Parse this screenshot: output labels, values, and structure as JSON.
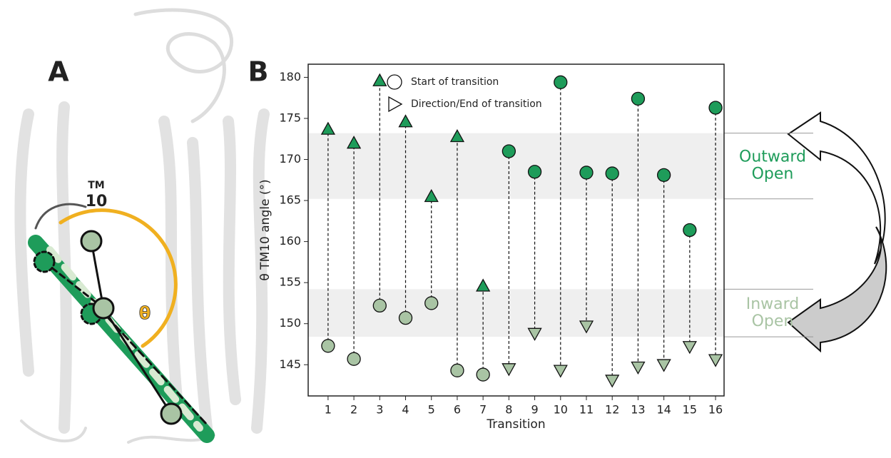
{
  "panel_a": {
    "label": "A",
    "helix_prefix": "TM",
    "helix_number": "10",
    "angle_symbol": "θ"
  },
  "chart_data": {
    "type": "transition",
    "panel_label": "B",
    "xlabel": "Transition",
    "ylabel": "θ TM10 angle (°)",
    "x": [
      1,
      2,
      3,
      4,
      5,
      6,
      7,
      8,
      9,
      10,
      11,
      12,
      13,
      14,
      15,
      16
    ],
    "xlim": [
      0.23,
      16.33
    ],
    "xticks": [
      1,
      2,
      3,
      4,
      5,
      6,
      7,
      8,
      9,
      10,
      11,
      12,
      13,
      14,
      15,
      16
    ],
    "ylim": [
      141.2,
      181.6
    ],
    "yticks": [
      145,
      150,
      155,
      160,
      165,
      170,
      175,
      180
    ],
    "series": [
      {
        "name": "Start of transition",
        "marker": "circle",
        "values": [
          147.3,
          145.7,
          152.2,
          150.7,
          152.5,
          144.3,
          143.8,
          171.0,
          168.5,
          179.4,
          168.4,
          168.3,
          177.4,
          168.1,
          161.4,
          176.3
        ],
        "colors": [
          "#a9c4a4",
          "#a9c4a4",
          "#a9c4a4",
          "#a9c4a4",
          "#a9c4a4",
          "#a9c4a4",
          "#a9c4a4",
          "#1e9c5a",
          "#1e9c5a",
          "#1e9c5a",
          "#1e9c5a",
          "#1e9c5a",
          "#1e9c5a",
          "#1e9c5a",
          "#1e9c5a",
          "#1e9c5a"
        ]
      },
      {
        "name": "Direction/End of transition",
        "marker": "triangle",
        "values": [
          173.7,
          172.0,
          179.6,
          174.6,
          165.5,
          172.8,
          154.6,
          144.5,
          148.8,
          144.3,
          149.7,
          143.1,
          144.7,
          145.0,
          147.2,
          145.6
        ],
        "colors": [
          "#1e9c5a",
          "#1e9c5a",
          "#1e9c5a",
          "#1e9c5a",
          "#1e9c5a",
          "#1e9c5a",
          "#1e9c5a",
          "#a9c4a4",
          "#a9c4a4",
          "#a9c4a4",
          "#a9c4a4",
          "#a9c4a4",
          "#a9c4a4",
          "#a9c4a4",
          "#a9c4a4",
          "#a9c4a4"
        ]
      }
    ],
    "bands": [
      {
        "label_lines": [
          "Outward",
          "Open"
        ],
        "range": [
          165.2,
          173.2
        ],
        "color": "#1e9c5a"
      },
      {
        "label_lines": [
          "Inward",
          "Open"
        ],
        "range": [
          148.4,
          154.2
        ],
        "color": "#a9c4a4"
      }
    ]
  }
}
